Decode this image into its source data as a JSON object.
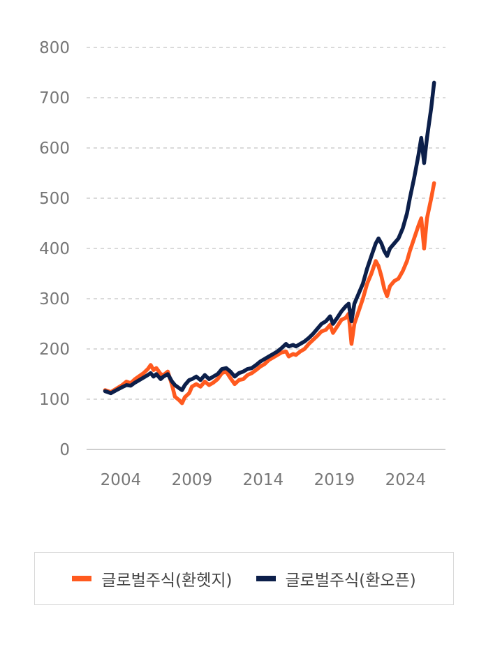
{
  "chart_data": {
    "type": "line",
    "title": "",
    "xlabel": "",
    "ylabel": "",
    "ylim": [
      0,
      800
    ],
    "yticks": [
      0,
      100,
      200,
      300,
      400,
      500,
      600,
      700,
      800
    ],
    "xlim": [
      2001.6,
      2026.8
    ],
    "xticks": [
      2004,
      2009,
      2014,
      2019,
      2024
    ],
    "grid": "horizontal-dashed",
    "legend_position": "bottom",
    "series": [
      {
        "name": "글로벌주식(환헷지)",
        "color": "#ff5a1f",
        "points": [
          [
            2002.9,
            118
          ],
          [
            2003.3,
            114
          ],
          [
            2003.7,
            121
          ],
          [
            2004.1,
            128
          ],
          [
            2004.4,
            135
          ],
          [
            2004.7,
            132
          ],
          [
            2005.0,
            140
          ],
          [
            2005.3,
            146
          ],
          [
            2005.6,
            152
          ],
          [
            2005.9,
            160
          ],
          [
            2006.1,
            168
          ],
          [
            2006.3,
            158
          ],
          [
            2006.5,
            162
          ],
          [
            2006.8,
            150
          ],
          [
            2007.0,
            148
          ],
          [
            2007.3,
            155
          ],
          [
            2007.6,
            128
          ],
          [
            2007.8,
            105
          ],
          [
            2008.1,
            98
          ],
          [
            2008.3,
            92
          ],
          [
            2008.5,
            104
          ],
          [
            2008.8,
            112
          ],
          [
            2009.0,
            125
          ],
          [
            2009.3,
            130
          ],
          [
            2009.6,
            125
          ],
          [
            2009.9,
            135
          ],
          [
            2010.2,
            128
          ],
          [
            2010.5,
            133
          ],
          [
            2010.8,
            140
          ],
          [
            2011.1,
            152
          ],
          [
            2011.4,
            155
          ],
          [
            2011.7,
            142
          ],
          [
            2012.0,
            130
          ],
          [
            2012.3,
            138
          ],
          [
            2012.6,
            140
          ],
          [
            2012.9,
            148
          ],
          [
            2013.2,
            152
          ],
          [
            2013.5,
            158
          ],
          [
            2013.8,
            165
          ],
          [
            2014.1,
            170
          ],
          [
            2014.4,
            178
          ],
          [
            2014.7,
            183
          ],
          [
            2015.0,
            188
          ],
          [
            2015.3,
            193
          ],
          [
            2015.6,
            195
          ],
          [
            2015.8,
            185
          ],
          [
            2016.1,
            190
          ],
          [
            2016.3,
            188
          ],
          [
            2016.6,
            195
          ],
          [
            2016.9,
            200
          ],
          [
            2017.2,
            210
          ],
          [
            2017.5,
            218
          ],
          [
            2017.8,
            226
          ],
          [
            2018.1,
            235
          ],
          [
            2018.4,
            238
          ],
          [
            2018.7,
            248
          ],
          [
            2018.9,
            232
          ],
          [
            2019.2,
            245
          ],
          [
            2019.5,
            258
          ],
          [
            2019.8,
            262
          ],
          [
            2020.0,
            270
          ],
          [
            2020.2,
            210
          ],
          [
            2020.4,
            250
          ],
          [
            2020.7,
            275
          ],
          [
            2021.0,
            300
          ],
          [
            2021.3,
            330
          ],
          [
            2021.6,
            350
          ],
          [
            2021.9,
            375
          ],
          [
            2022.1,
            365
          ],
          [
            2022.3,
            345
          ],
          [
            2022.5,
            320
          ],
          [
            2022.7,
            305
          ],
          [
            2022.9,
            325
          ],
          [
            2023.2,
            335
          ],
          [
            2023.5,
            340
          ],
          [
            2023.8,
            355
          ],
          [
            2024.1,
            375
          ],
          [
            2024.3,
            395
          ],
          [
            2024.6,
            420
          ],
          [
            2024.9,
            445
          ],
          [
            2025.1,
            460
          ],
          [
            2025.3,
            400
          ],
          [
            2025.5,
            460
          ],
          [
            2025.8,
            500
          ],
          [
            2026.0,
            530
          ]
        ]
      },
      {
        "name": "글로벌주식(환오픈)",
        "color": "#0c1f4a",
        "points": [
          [
            2002.9,
            116
          ],
          [
            2003.3,
            112
          ],
          [
            2003.7,
            118
          ],
          [
            2004.1,
            124
          ],
          [
            2004.4,
            128
          ],
          [
            2004.7,
            127
          ],
          [
            2005.0,
            133
          ],
          [
            2005.3,
            138
          ],
          [
            2005.6,
            143
          ],
          [
            2005.9,
            148
          ],
          [
            2006.1,
            152
          ],
          [
            2006.3,
            145
          ],
          [
            2006.5,
            150
          ],
          [
            2006.8,
            140
          ],
          [
            2007.0,
            145
          ],
          [
            2007.3,
            150
          ],
          [
            2007.6,
            135
          ],
          [
            2007.8,
            128
          ],
          [
            2008.1,
            122
          ],
          [
            2008.3,
            118
          ],
          [
            2008.5,
            128
          ],
          [
            2008.8,
            138
          ],
          [
            2009.0,
            140
          ],
          [
            2009.3,
            145
          ],
          [
            2009.6,
            138
          ],
          [
            2009.9,
            148
          ],
          [
            2010.2,
            140
          ],
          [
            2010.5,
            145
          ],
          [
            2010.8,
            150
          ],
          [
            2011.1,
            160
          ],
          [
            2011.4,
            162
          ],
          [
            2011.7,
            155
          ],
          [
            2012.0,
            145
          ],
          [
            2012.3,
            152
          ],
          [
            2012.6,
            155
          ],
          [
            2012.9,
            160
          ],
          [
            2013.2,
            162
          ],
          [
            2013.5,
            168
          ],
          [
            2013.8,
            175
          ],
          [
            2014.1,
            180
          ],
          [
            2014.4,
            185
          ],
          [
            2014.7,
            190
          ],
          [
            2015.0,
            195
          ],
          [
            2015.3,
            202
          ],
          [
            2015.6,
            210
          ],
          [
            2015.8,
            205
          ],
          [
            2016.1,
            208
          ],
          [
            2016.3,
            205
          ],
          [
            2016.6,
            210
          ],
          [
            2016.9,
            215
          ],
          [
            2017.2,
            222
          ],
          [
            2017.5,
            230
          ],
          [
            2017.8,
            240
          ],
          [
            2018.1,
            250
          ],
          [
            2018.4,
            255
          ],
          [
            2018.7,
            265
          ],
          [
            2018.9,
            250
          ],
          [
            2019.2,
            262
          ],
          [
            2019.5,
            275
          ],
          [
            2019.8,
            285
          ],
          [
            2020.0,
            290
          ],
          [
            2020.2,
            255
          ],
          [
            2020.4,
            290
          ],
          [
            2020.7,
            310
          ],
          [
            2021.0,
            330
          ],
          [
            2021.3,
            360
          ],
          [
            2021.6,
            385
          ],
          [
            2021.9,
            410
          ],
          [
            2022.1,
            420
          ],
          [
            2022.3,
            410
          ],
          [
            2022.5,
            395
          ],
          [
            2022.7,
            385
          ],
          [
            2022.9,
            400
          ],
          [
            2023.2,
            410
          ],
          [
            2023.5,
            420
          ],
          [
            2023.8,
            440
          ],
          [
            2024.1,
            470
          ],
          [
            2024.3,
            500
          ],
          [
            2024.6,
            540
          ],
          [
            2024.9,
            585
          ],
          [
            2025.1,
            620
          ],
          [
            2025.3,
            570
          ],
          [
            2025.5,
            620
          ],
          [
            2025.8,
            680
          ],
          [
            2026.0,
            730
          ]
        ]
      }
    ]
  },
  "legend": {
    "items": [
      {
        "label": "글로벌주식(환헷지)",
        "color": "#ff5a1f"
      },
      {
        "label": "글로벌주식(환오픈)",
        "color": "#0c1f4a"
      }
    ]
  }
}
